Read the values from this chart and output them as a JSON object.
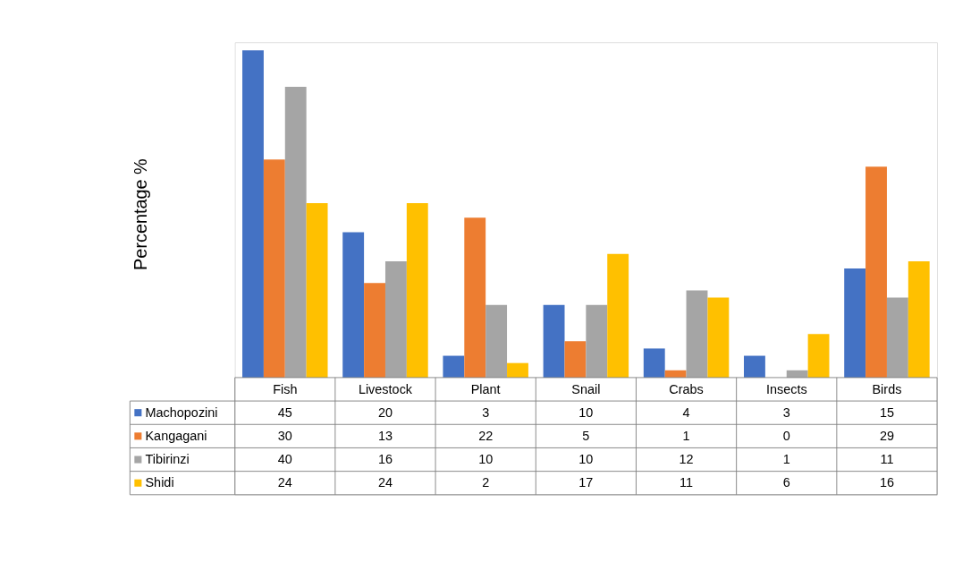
{
  "chart_data": {
    "type": "bar",
    "ylabel": "Percentage %",
    "categories": [
      "Fish",
      "Livestock",
      "Plant",
      "Snail",
      "Crabs",
      "Insects",
      "Birds"
    ],
    "series": [
      {
        "name": "Machopozini",
        "color": "#4472c4",
        "values": [
          45,
          20,
          3,
          10,
          4,
          3,
          15
        ]
      },
      {
        "name": "Kangagani",
        "color": "#ed7d31",
        "values": [
          30,
          13,
          22,
          5,
          1,
          0,
          29
        ]
      },
      {
        "name": "Tibirinzi",
        "color": "#a5a5a5",
        "values": [
          40,
          16,
          10,
          10,
          12,
          1,
          11
        ]
      },
      {
        "name": "Shidi",
        "color": "#ffc000",
        "values": [
          24,
          24,
          2,
          17,
          11,
          6,
          16
        ]
      }
    ],
    "data_labels": true,
    "legend": "bottom left"
  }
}
